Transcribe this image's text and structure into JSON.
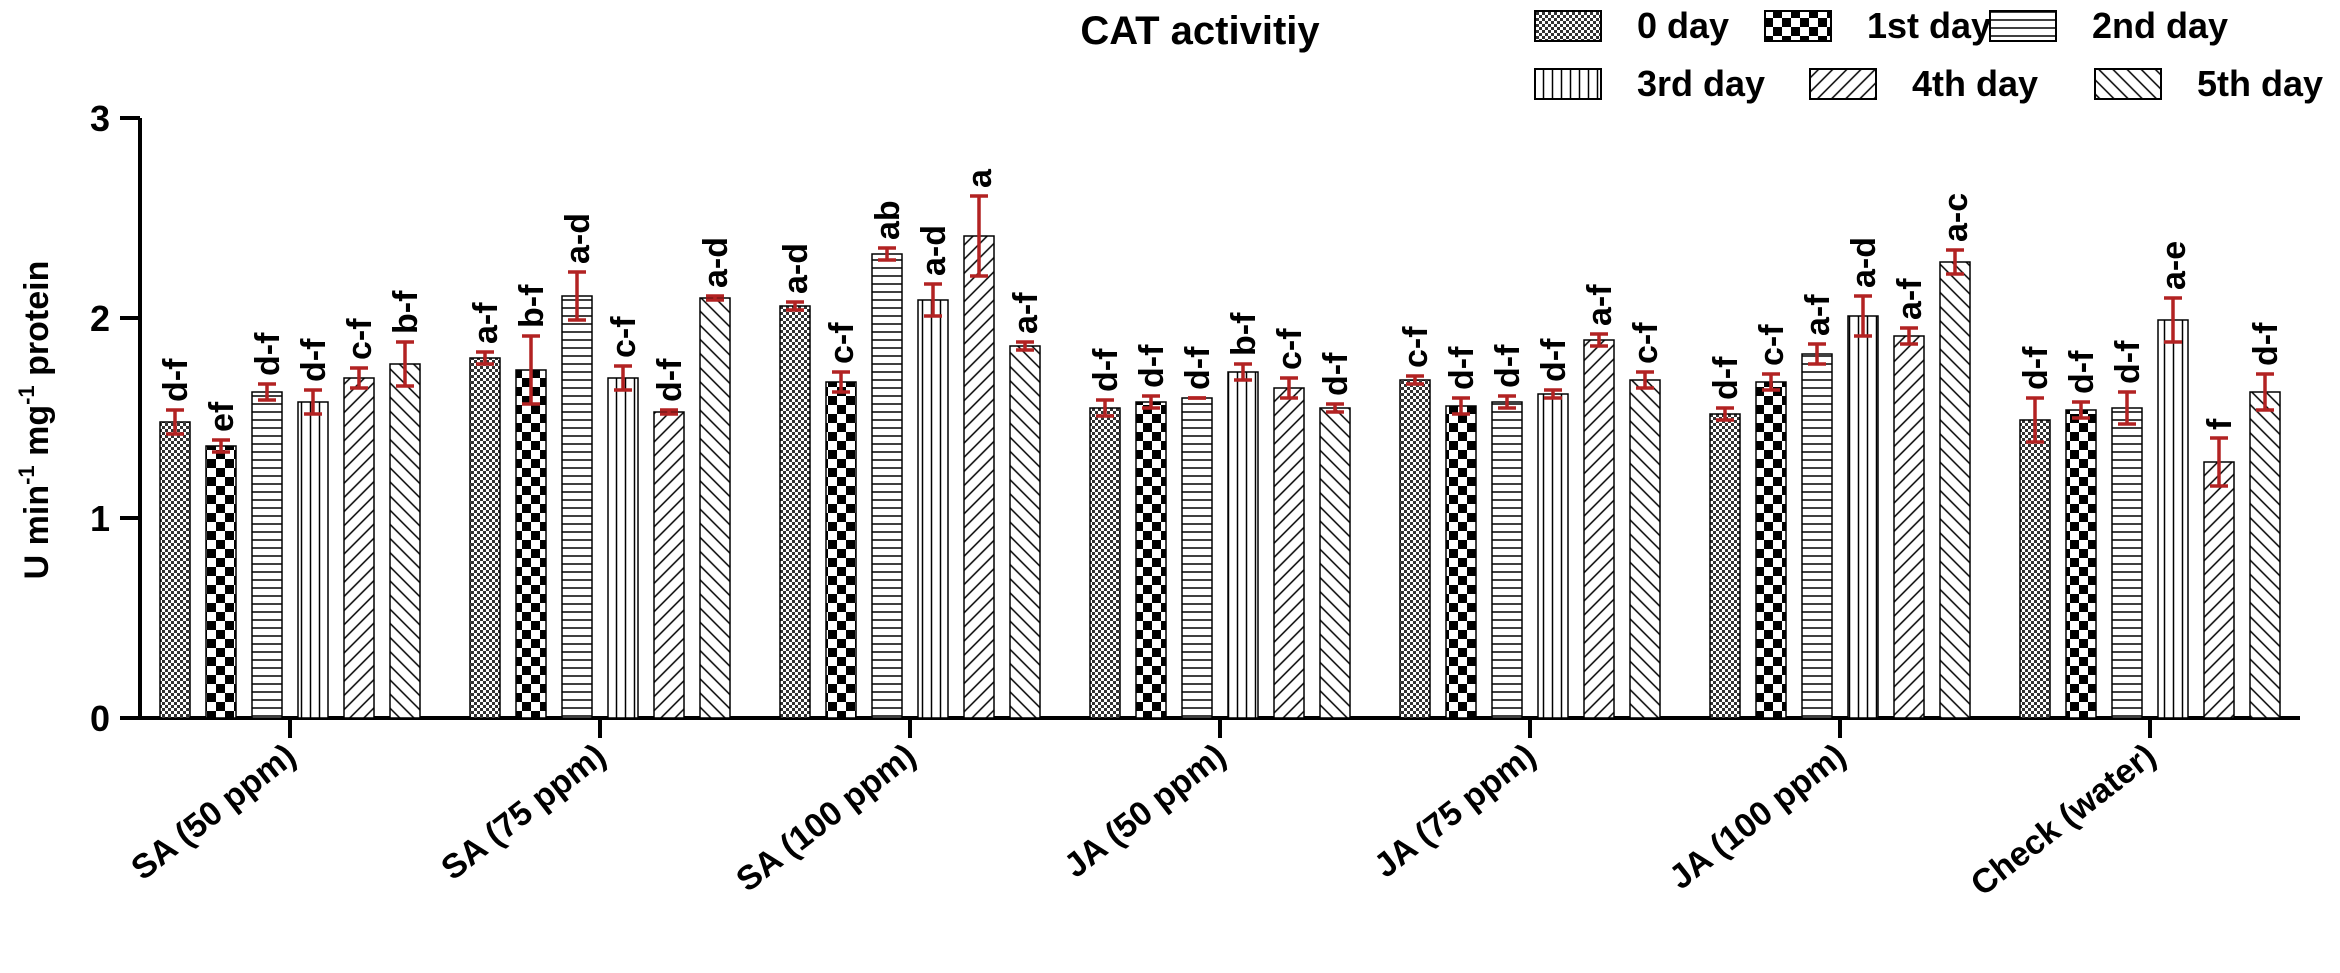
{
  "chart_data": {
    "type": "bar",
    "title": "CAT activitiy",
    "ylabel_parts": {
      "p1": "U min",
      "s1": "-1",
      "p2": " mg",
      "s2": "-1",
      "p3": " protein"
    },
    "ylim": [
      0,
      3
    ],
    "yticks": [
      "0",
      "1",
      "2",
      "3"
    ],
    "categories": [
      "SA (50 ppm)",
      "SA (75 ppm)",
      "SA (100 ppm)",
      "JA (50 ppm)",
      "JA (75 ppm)",
      "JA (100 ppm)",
      "Check (water)"
    ],
    "series": [
      {
        "name": "0 day",
        "pattern": "fine-check",
        "values": [
          1.48,
          1.8,
          2.06,
          1.55,
          1.69,
          1.52,
          1.49
        ],
        "errors": [
          0.06,
          0.03,
          0.02,
          0.04,
          0.02,
          0.03,
          0.11
        ],
        "letters": [
          "d-f",
          "a-f",
          "a-d",
          "d-f",
          "c-f",
          "d-f",
          "d-f"
        ]
      },
      {
        "name": "1st day",
        "pattern": "checker",
        "values": [
          1.36,
          1.74,
          1.68,
          1.58,
          1.56,
          1.68,
          1.54
        ],
        "errors": [
          0.03,
          0.17,
          0.05,
          0.03,
          0.04,
          0.04,
          0.04
        ],
        "letters": [
          "ef",
          "b-f",
          "c-f",
          "d-f",
          "d-f",
          "c-f",
          "d-f"
        ]
      },
      {
        "name": "2nd day",
        "pattern": "horizontal",
        "values": [
          1.63,
          2.11,
          2.32,
          1.6,
          1.58,
          1.82,
          1.55
        ],
        "errors": [
          0.04,
          0.12,
          0.03,
          0.0,
          0.03,
          0.05,
          0.08
        ],
        "letters": [
          "d-f",
          "a-d",
          "ab",
          "d-f",
          "d-f",
          "a-f",
          "d-f"
        ]
      },
      {
        "name": "3rd day",
        "pattern": "vertical",
        "values": [
          1.58,
          1.7,
          2.09,
          1.73,
          1.62,
          2.01,
          1.99
        ],
        "errors": [
          0.06,
          0.06,
          0.08,
          0.04,
          0.02,
          0.1,
          0.11
        ],
        "letters": [
          "d-f",
          "c-f",
          "a-d",
          "b-f",
          "d-f",
          "a-d",
          "a-e"
        ]
      },
      {
        "name": "4th day",
        "pattern": "diag-up",
        "values": [
          1.7,
          1.53,
          2.41,
          1.65,
          1.89,
          1.91,
          1.28
        ],
        "errors": [
          0.05,
          0.01,
          0.2,
          0.05,
          0.03,
          0.04,
          0.12
        ],
        "letters": [
          "c-f",
          "d-f",
          "a",
          "c-f",
          "a-f",
          "a-f",
          "f"
        ]
      },
      {
        "name": "5th day",
        "pattern": "diag-down",
        "values": [
          1.77,
          2.1,
          1.86,
          1.55,
          1.69,
          2.28,
          1.63
        ],
        "errors": [
          0.11,
          0.01,
          0.02,
          0.02,
          0.04,
          0.06,
          0.09
        ],
        "letters": [
          "b-f",
          "a-d",
          "a-f",
          "d-f",
          "c-f",
          "a-c",
          "d-f"
        ]
      }
    ],
    "legend_position": "top-right",
    "colors": {
      "bar_outline": "#000000",
      "error_bar": "#b22222",
      "axis": "#000000"
    }
  }
}
